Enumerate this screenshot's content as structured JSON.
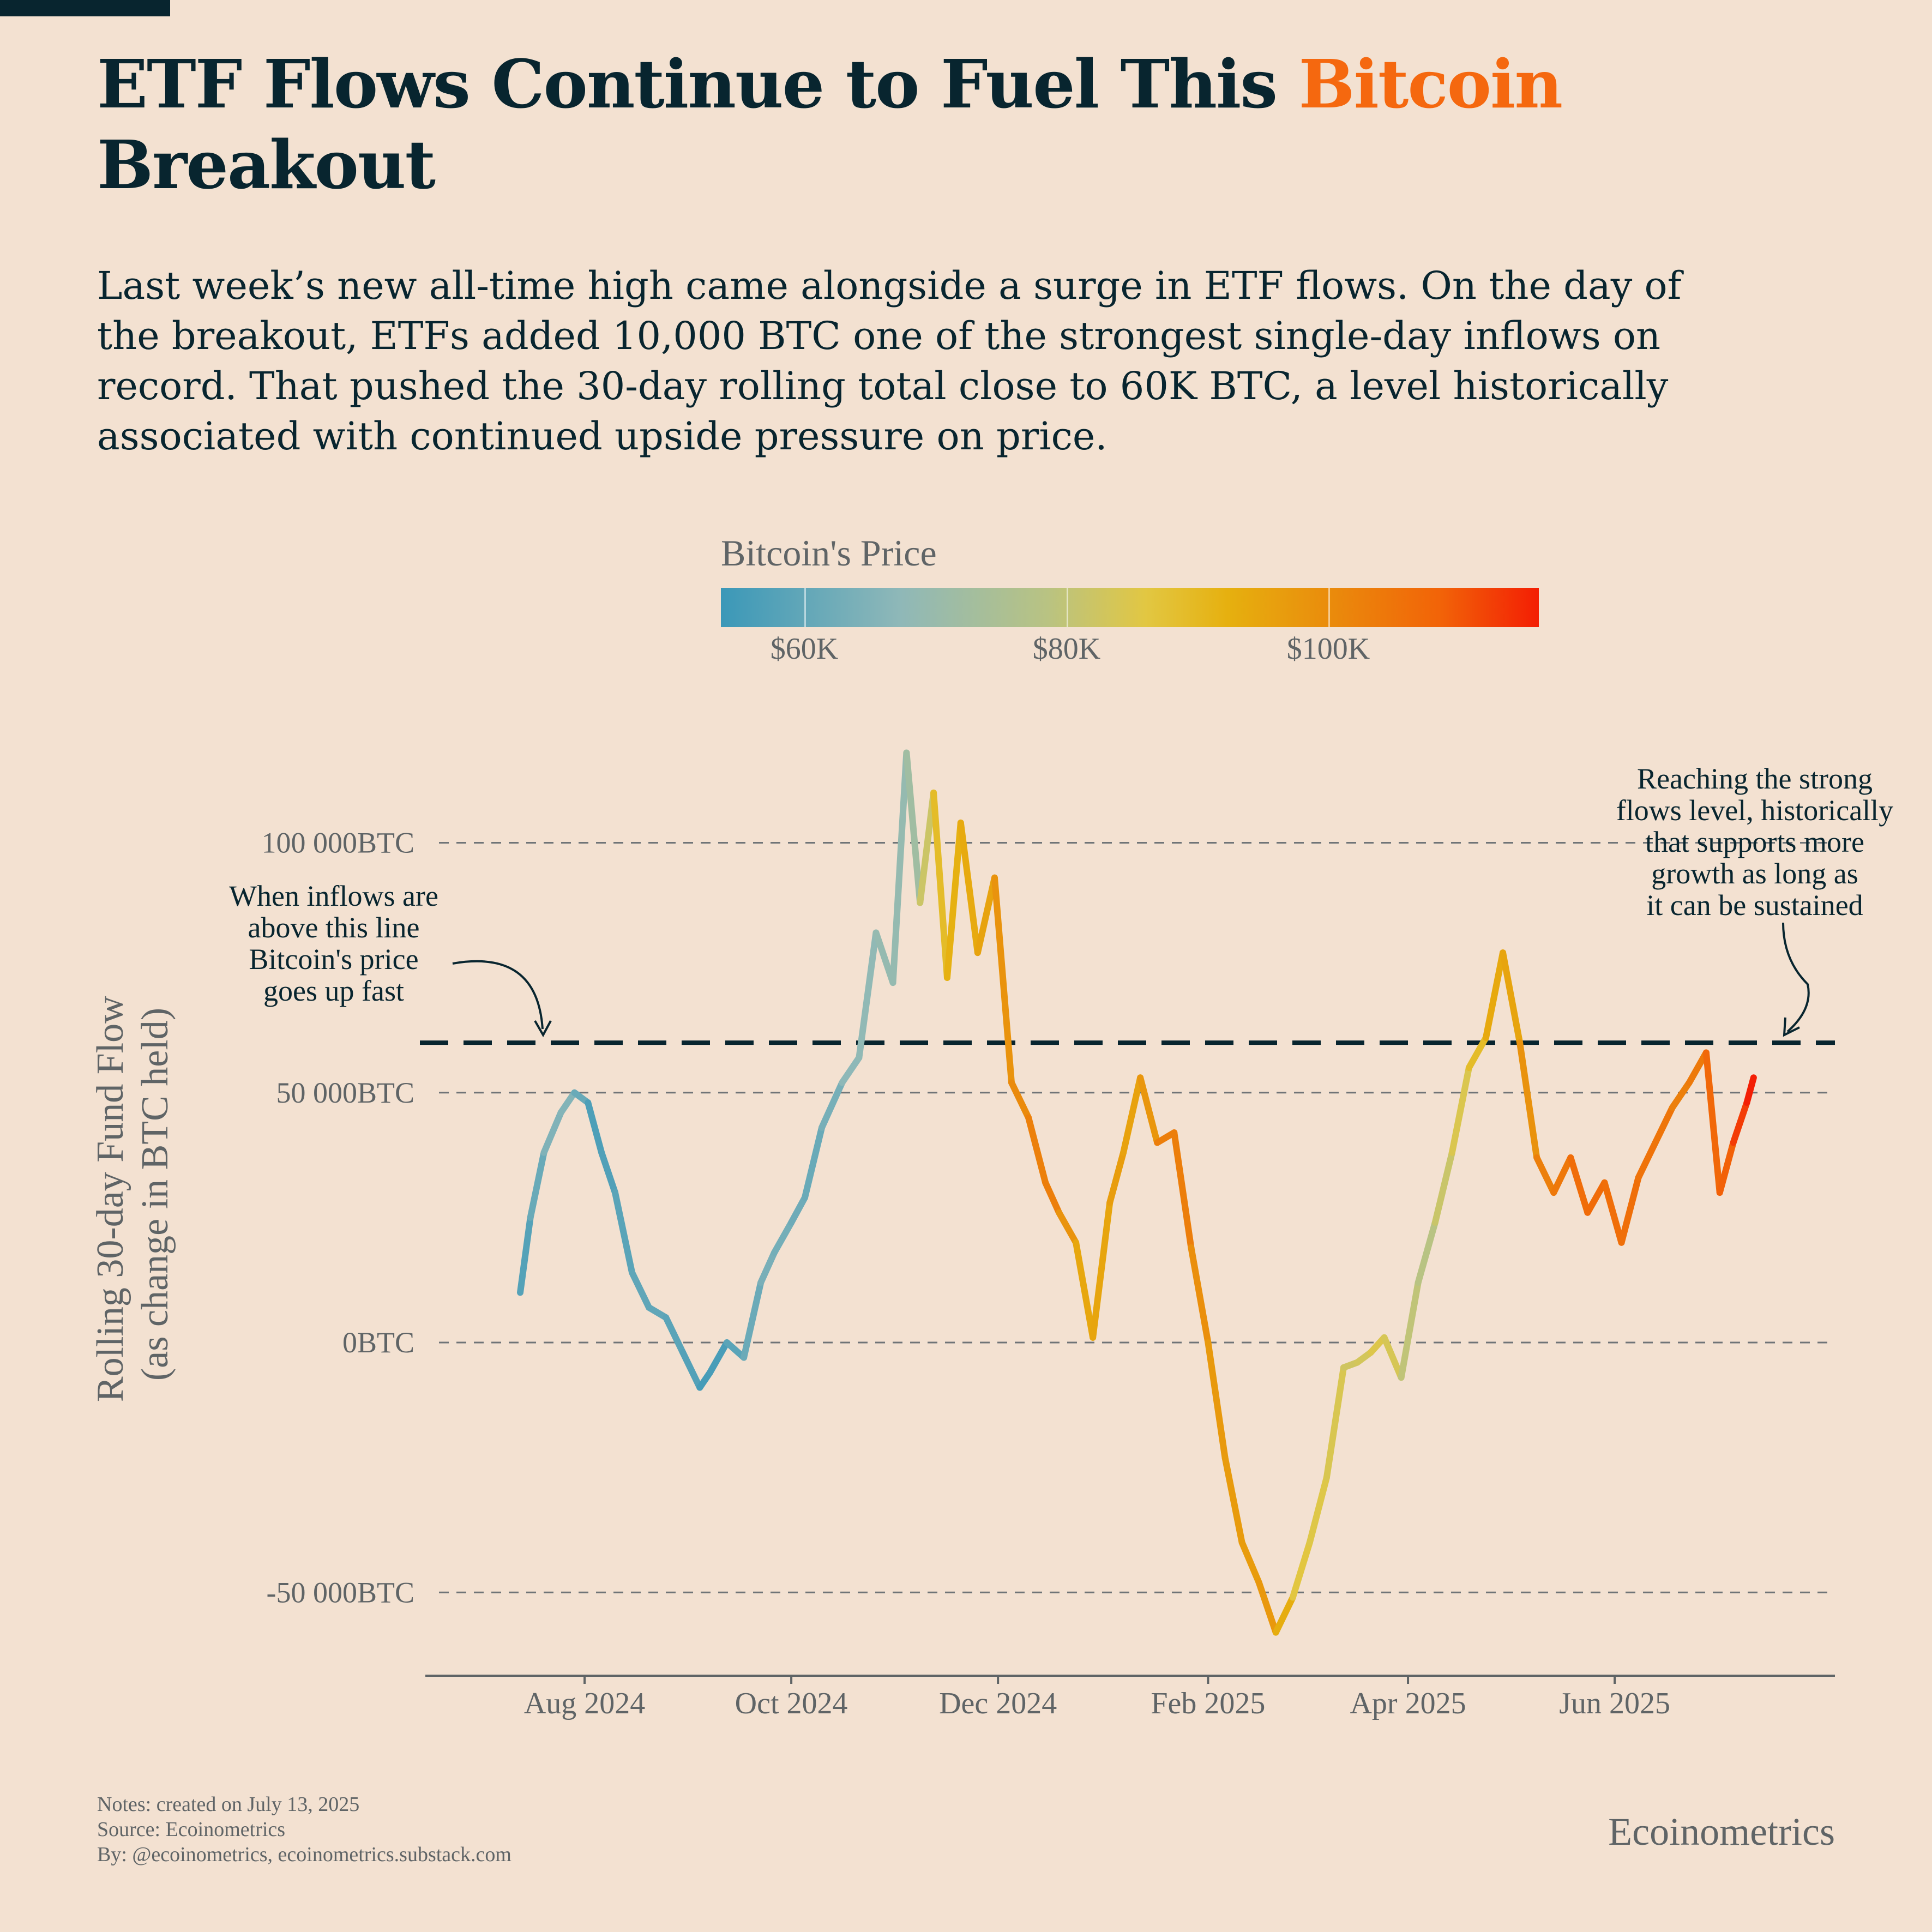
{
  "header": {
    "title_pre": "ETF Flows Continue to Fuel This ",
    "title_accent": "Bitcoin",
    "title_post": "Breakout",
    "subtitle": "Last week’s new all-time high came alongside a surge in ETF flows. On the day of the breakout, ETFs added 10,000 BTC one of the strongest single-day inflows on record. That pushed the 30-day rolling total close to 60K BTC, a level historically associated with continued upside pressure on price."
  },
  "legend": {
    "title": "Bitcoin's Price",
    "ticks": [
      "$60K",
      "$80K",
      "$100K"
    ]
  },
  "annotations": {
    "left": [
      "When inflows are",
      "above this line",
      "Bitcoin's price",
      "goes up fast"
    ],
    "right": [
      "Reaching the strong",
      "flows level, historically",
      "that supports more",
      "growth as long as",
      "it can be sustained"
    ]
  },
  "footer": {
    "notes": "Notes: created on July 13, 2025",
    "source": "Source: Ecoinometrics",
    "by": "By: @ecoinometrics, ecoinometrics.substack.com",
    "brand": "Ecoinometrics"
  },
  "colors": {
    "background": "#f3e1d1",
    "title": "#08252f",
    "accent": "#f5680f",
    "muted": "#5f6466",
    "threshold": "#08252f"
  },
  "chart_data": {
    "type": "line",
    "title": "",
    "ylabel": "Rolling 30-day Fund Flow\n(as change in BTC held)",
    "xlabel": "",
    "ylim": [
      -65000,
      125000
    ],
    "xlim": [
      "2024-06-15",
      "2025-08-05"
    ],
    "yticks": [
      -50000,
      0,
      50000,
      100000
    ],
    "ytick_labels": [
      "-50 000BTC",
      "0BTC",
      "50 000BTC",
      "100 000BTC"
    ],
    "xticks": [
      "2024-08-01",
      "2024-10-01",
      "2024-12-01",
      "2025-02-01",
      "2025-04-01",
      "2025-06-01"
    ],
    "xtick_labels": [
      "Aug 2024",
      "Oct 2024",
      "Dec 2024",
      "Feb 2025",
      "Apr 2025",
      "Jun 2025"
    ],
    "threshold": 60000,
    "grid": "horizontal dashed",
    "legend_position": "top-center colorbar",
    "colorbar_range": [
      54000,
      116000
    ],
    "series": [
      {
        "x": [
          "2024-07-13",
          "2024-07-16",
          "2024-07-20",
          "2024-07-25",
          "2024-07-29",
          "2024-08-02",
          "2024-08-06",
          "2024-08-10",
          "2024-08-15",
          "2024-08-20",
          "2024-08-25",
          "2024-08-30",
          "2024-09-04",
          "2024-09-07",
          "2024-09-12",
          "2024-09-17",
          "2024-09-22",
          "2024-09-26",
          "2024-10-01",
          "2024-10-05",
          "2024-10-10",
          "2024-10-16",
          "2024-10-21",
          "2024-10-26",
          "2024-10-31",
          "2024-11-04",
          "2024-11-08",
          "2024-11-12",
          "2024-11-16",
          "2024-11-20",
          "2024-11-25",
          "2024-11-30",
          "2024-12-05",
          "2024-12-10",
          "2024-12-15",
          "2024-12-19",
          "2024-12-24",
          "2024-12-29",
          "2025-01-03",
          "2025-01-07",
          "2025-01-12",
          "2025-01-17",
          "2025-01-22",
          "2025-01-27",
          "2025-02-01",
          "2025-02-06",
          "2025-02-11",
          "2025-02-16",
          "2025-02-21",
          "2025-02-26",
          "2025-03-03",
          "2025-03-08",
          "2025-03-13",
          "2025-03-17",
          "2025-03-21",
          "2025-03-25",
          "2025-03-30",
          "2025-04-04",
          "2025-04-09",
          "2025-04-14",
          "2025-04-19",
          "2025-04-24",
          "2025-04-29",
          "2025-05-04",
          "2025-05-09",
          "2025-05-14",
          "2025-05-19",
          "2025-05-24",
          "2025-05-29",
          "2025-06-03",
          "2025-06-08",
          "2025-06-13",
          "2025-06-18",
          "2025-06-23",
          "2025-06-28",
          "2025-07-02",
          "2025-07-06",
          "2025-07-10",
          "2025-07-12"
        ],
        "values": [
          10000,
          25000,
          38000,
          46000,
          50000,
          48000,
          38000,
          30000,
          14000,
          7000,
          5000,
          -2000,
          -9000,
          -6000,
          0,
          -3000,
          12000,
          18000,
          24000,
          29000,
          43000,
          52000,
          57000,
          82000,
          72000,
          118000,
          88000,
          110000,
          73000,
          104000,
          78000,
          93000,
          52000,
          45000,
          32000,
          26000,
          20000,
          1000,
          28000,
          38000,
          53000,
          40000,
          42000,
          19000,
          0,
          -23000,
          -40000,
          -48000,
          -58000,
          -51000,
          -40000,
          -27000,
          -5000,
          -4000,
          -2000,
          1000,
          -7000,
          12000,
          24000,
          38000,
          55000,
          61000,
          78000,
          60000,
          37000,
          30000,
          37000,
          26000,
          32000,
          20000,
          33000,
          40000,
          47000,
          52000,
          58000,
          30000,
          40000,
          48000,
          53000
        ],
        "prices": [
          57500,
          59000,
          64000,
          66500,
          65000,
          58000,
          56000,
          59000,
          59000,
          61000,
          59000,
          59000,
          57000,
          54500,
          58000,
          60000,
          63500,
          64500,
          62000,
          62500,
          60500,
          67000,
          68000,
          68500,
          70000,
          68500,
          76000,
          88000,
          90500,
          94000,
          93500,
          97000,
          100000,
          101000,
          104000,
          102000,
          95000,
          93500,
          96000,
          97000,
          94000,
          102000,
          104000,
          102000,
          97000,
          97500,
          96500,
          97000,
          98000,
          88000,
          85000,
          86000,
          83000,
          82500,
          84500,
          86000,
          82000,
          78000,
          79000,
          84500,
          85000,
          93500,
          94500,
          95500,
          102000,
          103500,
          105000,
          108000,
          106000,
          106500,
          105500,
          105000,
          104500,
          101000,
          107000,
          108000,
          109500,
          116000,
          117500
        ]
      }
    ]
  }
}
